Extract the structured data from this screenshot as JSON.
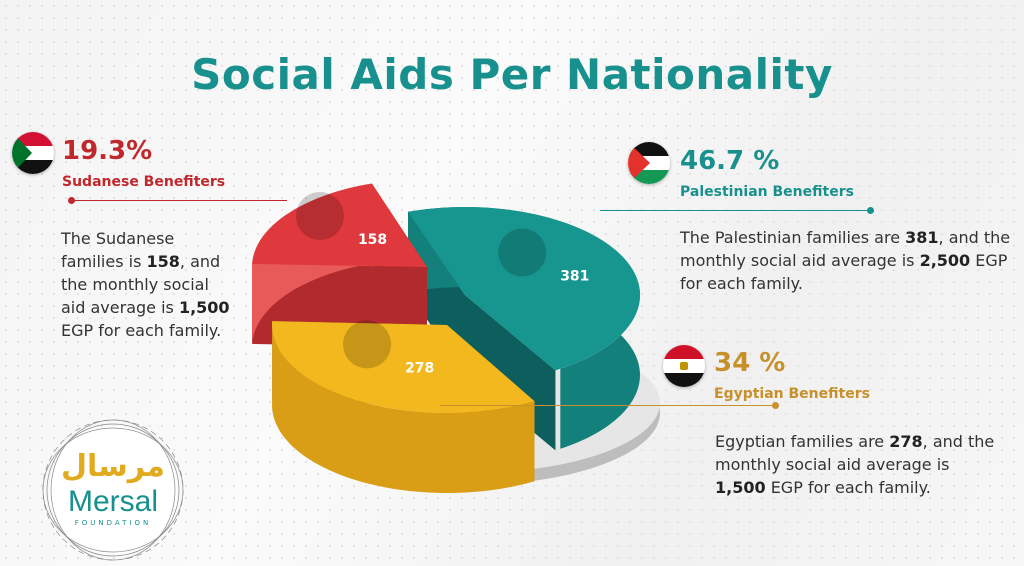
{
  "title": "Social Aids Per Nationality",
  "sudan": {
    "percent": "19.3%",
    "label": "Sudanese Benefiters",
    "desc_1": "The Sudanese families is ",
    "families": "158",
    "desc_2": ", and the monthly social aid average is ",
    "average": "1,500",
    "desc_3": " EGP for each family.",
    "color": "#c0282d"
  },
  "palestine": {
    "percent": "46.7 %",
    "label": "Palestinian Benefiters",
    "desc_1": "The Palestinian families are ",
    "families": "381",
    "desc_2": ", and the monthly social aid average is ",
    "average": "2,500",
    "desc_3": " EGP for each family.",
    "color": "#17908e"
  },
  "egypt": {
    "percent": "34 %",
    "label": "Egyptian Benefiters",
    "desc_1": "Egyptian families are ",
    "families": "278",
    "desc_2": ", and the monthly social aid average is ",
    "average": "1,500",
    "desc_3": " EGP for each family.",
    "color": "#c8902a"
  },
  "logo": {
    "arabic": "مرسال",
    "name": "Mersal",
    "sub": "FOUNDATION"
  },
  "chart_data": {
    "type": "pie",
    "title": "Social Aids Per Nationality",
    "categories": [
      "Sudanese",
      "Palestinian",
      "Egyptian"
    ],
    "values": [
      158,
      381,
      278
    ],
    "percentages": [
      19.3,
      46.7,
      34
    ],
    "data_labels": [
      "158",
      "381",
      "278"
    ],
    "colors": [
      "#e0393d",
      "#17968f",
      "#f2b81e"
    ],
    "style": "3d-exploded"
  }
}
